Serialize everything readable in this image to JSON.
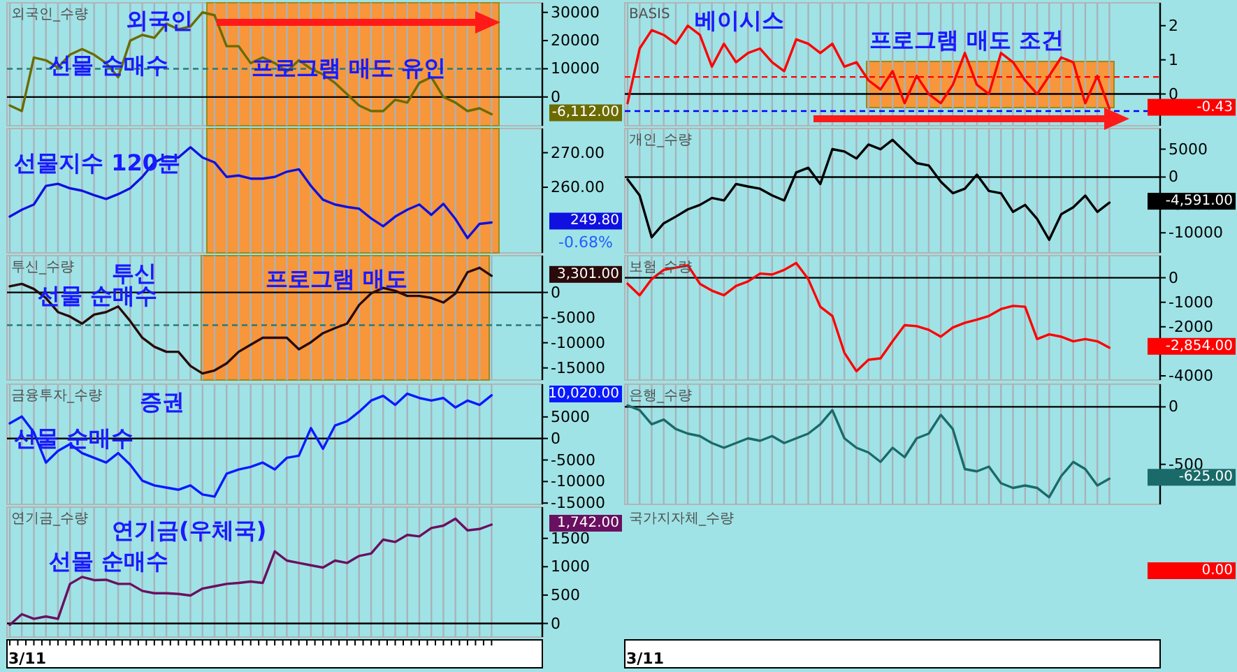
{
  "chart_data": [
    {
      "type": "line",
      "title": "외국인_수량",
      "color": "#6b6b00",
      "ylim": [
        -10200,
        33400
      ],
      "yticks": [
        0,
        10000,
        20000,
        30000
      ],
      "grid": "x",
      "tick_labels": "y",
      "categories": [
        null,
        null,
        null,
        null,
        null,
        null,
        null,
        null,
        null,
        null,
        null,
        null,
        null,
        null,
        null,
        null,
        null,
        null,
        null,
        null,
        null,
        null,
        null,
        null,
        null,
        null,
        null,
        null,
        null,
        null,
        null,
        null,
        null,
        null,
        null,
        null,
        null,
        null,
        null,
        null,
        null
      ],
      "values": [
        -3000,
        -5000,
        14000,
        13000,
        10500,
        15000,
        17000,
        15000,
        12000,
        7000,
        20000,
        22000,
        21000,
        26000,
        24000,
        25000,
        30000,
        29000,
        18000,
        18000,
        12000,
        14000,
        12000,
        9000,
        13000,
        10000,
        8000,
        5000,
        1000,
        -3000,
        -5000,
        -5000,
        -1000,
        -2000,
        5000,
        7000,
        0,
        -2000,
        -5000,
        -4000,
        -6112
      ],
      "ref_lines": [
        {
          "axis": "y",
          "value": 0,
          "color": "#000000",
          "line_style": "solid"
        },
        {
          "axis": "y",
          "value": 10000,
          "color": "#2a7a7a",
          "line_style": "dashed"
        }
      ],
      "annotations": [
        "외국인",
        "선물 순매수",
        "프로그램 매도 유인",
        "-6,112.00"
      ]
    },
    {
      "type": "line",
      "color": "#1010e0",
      "ylim": [
        241,
        277
      ],
      "yticks": [
        {
          "value": 260,
          "label": "260.00"
        },
        {
          "value": 270,
          "label": "270.00"
        }
      ],
      "grid": "x",
      "tick_labels": "y",
      "categories": [
        null,
        null,
        null,
        null,
        null,
        null,
        null,
        null,
        null,
        null,
        null,
        null,
        null,
        null,
        null,
        null,
        null,
        null,
        null,
        null,
        null,
        null,
        null,
        null,
        null,
        null,
        null,
        null,
        null,
        null,
        null,
        null,
        null,
        null,
        null,
        null,
        null,
        null,
        null,
        null,
        null
      ],
      "values": [
        251.5,
        253.5,
        255,
        260.4,
        261,
        259.7,
        259,
        257.7,
        256.6,
        258,
        259.7,
        263,
        267.2,
        268.9,
        268.6,
        271.6,
        268.6,
        267.2,
        263,
        263.4,
        262.5,
        262.5,
        263,
        264.5,
        265.2,
        260.4,
        256.4,
        255,
        254.3,
        253.8,
        251,
        248.7,
        251.5,
        253.5,
        255,
        252,
        255.2,
        250.8,
        245.3,
        249.4,
        249.8
      ],
      "annotations": [
        "선물지수 120분",
        "-0.68%",
        "249.80"
      ]
    },
    {
      "type": "line",
      "title": "투신_수량",
      "color": "#2a0a0a",
      "ylim": [
        -17400,
        7300
      ],
      "yticks": [
        -15000,
        -10000,
        -5000,
        0
      ],
      "grid": "x",
      "tick_labels": "y",
      "categories": [
        null,
        null,
        null,
        null,
        null,
        null,
        null,
        null,
        null,
        null,
        null,
        null,
        null,
        null,
        null,
        null,
        null,
        null,
        null,
        null,
        null,
        null,
        null,
        null,
        null,
        null,
        null,
        null,
        null,
        null,
        null,
        null,
        null,
        null,
        null,
        null,
        null,
        null,
        null,
        null,
        null
      ],
      "values": [
        1200,
        1700,
        700,
        -1100,
        -3900,
        -4800,
        -6200,
        -4400,
        -3900,
        -2800,
        -5700,
        -9000,
        -10800,
        -11800,
        -11800,
        -14600,
        -16100,
        -15500,
        -14100,
        -11800,
        -10400,
        -9000,
        -9000,
        -9000,
        -11300,
        -9900,
        -8100,
        -7100,
        -6200,
        -2500,
        -200,
        900,
        300,
        -700,
        -700,
        -1100,
        -2000,
        -200,
        4000,
        4900,
        3301
      ],
      "ref_lines": [
        {
          "axis": "y",
          "value": 0,
          "color": "#000000",
          "line_style": "solid"
        },
        {
          "axis": "y",
          "value": -6500,
          "color": "#2a7a7a",
          "line_style": "dashed"
        }
      ],
      "annotations": [
        "투신",
        "선물 순매수",
        "프로그램 매도",
        "3,301.00"
      ]
    },
    {
      "type": "line",
      "title": "금융투자_수량",
      "color": "#0a1aff",
      "ylim": [
        -15300,
        12600
      ],
      "yticks": [
        -15000,
        -10000,
        -5000,
        0,
        5000
      ],
      "grid": "x",
      "tick_labels": "y",
      "categories": [
        null,
        null,
        null,
        null,
        null,
        null,
        null,
        null,
        null,
        null,
        null,
        null,
        null,
        null,
        null,
        null,
        null,
        null,
        null,
        null,
        null,
        null,
        null,
        null,
        null,
        null,
        null,
        null,
        null,
        null,
        null,
        null,
        null,
        null,
        null,
        null,
        null,
        null,
        null,
        null,
        null
      ],
      "values": [
        3500,
        5100,
        1400,
        -5600,
        -2900,
        -1300,
        -3400,
        -4500,
        -5600,
        -3400,
        -6100,
        -9800,
        -10900,
        -11400,
        -11900,
        -10900,
        -13000,
        -13500,
        -8200,
        -7200,
        -6600,
        -5600,
        -7200,
        -4500,
        -4000,
        2400,
        -2400,
        3000,
        4000,
        6200,
        8800,
        9900,
        7800,
        10400,
        9400,
        8800,
        9400,
        7200,
        8800,
        7800,
        10020
      ],
      "ref_lines": [
        {
          "axis": "y",
          "value": 0,
          "color": "#000000",
          "line_style": "solid"
        }
      ],
      "annotations": [
        "증권",
        "선물 순매수",
        "10,020.00"
      ]
    },
    {
      "type": "line",
      "title": "연기금_수량",
      "color": "#6a1060",
      "ylim": [
        -240,
        2050
      ],
      "yticks": [
        0,
        500,
        1000,
        1500
      ],
      "grid": "x",
      "tick_labels": "y",
      "categories": [
        null,
        null,
        null,
        null,
        null,
        null,
        null,
        null,
        null,
        null,
        null,
        null,
        null,
        null,
        null,
        null,
        null,
        null,
        null,
        null,
        null,
        null,
        null,
        null,
        null,
        null,
        null,
        null,
        null,
        null,
        null,
        null,
        null,
        null,
        null,
        null,
        null,
        null,
        null,
        null,
        null
      ],
      "values": [
        -25,
        163,
        81,
        123,
        81,
        697,
        820,
        764,
        770,
        697,
        697,
        574,
        533,
        533,
        520,
        492,
        615,
        656,
        697,
        715,
        738,
        715,
        1271,
        1108,
        1066,
        1025,
        985,
        1108,
        1066,
        1190,
        1232,
        1478,
        1436,
        1560,
        1535,
        1683,
        1724,
        1847,
        1641,
        1665,
        1742
      ],
      "ref_lines": [
        {
          "axis": "y",
          "value": 0,
          "color": "#000000",
          "line_style": "solid"
        }
      ],
      "annotations": [
        "연기금(우체국)",
        "선물 순매수",
        "3/11",
        "1,742.00"
      ]
    },
    {
      "type": "line",
      "title": "BASIS",
      "color": "#ff0000",
      "ylim": [
        -0.93,
        2.67
      ],
      "yticks": [
        0,
        1,
        2
      ],
      "grid": "x",
      "tick_labels": "y",
      "categories": [
        null,
        null,
        null,
        null,
        null,
        null,
        null,
        null,
        null,
        null,
        null,
        null,
        null,
        null,
        null,
        null,
        null,
        null,
        null,
        null,
        null,
        null,
        null,
        null,
        null,
        null,
        null,
        null,
        null,
        null,
        null,
        null,
        null,
        null,
        null,
        null,
        null,
        null,
        null,
        null,
        null
      ],
      "values": [
        -0.27,
        1.33,
        1.87,
        1.73,
        1.47,
        2.0,
        1.73,
        0.8,
        1.47,
        0.93,
        1.2,
        1.33,
        0.93,
        0.67,
        1.6,
        1.47,
        1.2,
        1.47,
        0.8,
        0.93,
        0.4,
        0.13,
        0.67,
        -0.27,
        0.53,
        0,
        -0.27,
        0.27,
        1.2,
        0.27,
        0,
        1.2,
        0.93,
        0.4,
        0,
        0.53,
        1.07,
        0.93,
        -0.27,
        0.53,
        -0.43
      ],
      "ref_lines": [
        {
          "axis": "y",
          "value": 0,
          "color": "#000000",
          "line_style": "solid"
        },
        {
          "axis": "y",
          "value": 0.5,
          "color": "#ff0000",
          "line_style": "dashed"
        },
        {
          "axis": "y",
          "value": -0.5,
          "color": "#0000ff",
          "line_style": "dashed"
        }
      ],
      "annotations": [
        "베이시스",
        "프로그램 매도 조건",
        "-0.43"
      ]
    },
    {
      "type": "line",
      "title": "개인_수량",
      "color": "#000000",
      "ylim": [
        -13600,
        8700
      ],
      "yticks": [
        -10000,
        -5000,
        0,
        5000
      ],
      "grid": "x",
      "tick_labels": "y",
      "categories": [
        null,
        null,
        null,
        null,
        null,
        null,
        null,
        null,
        null,
        null,
        null,
        null,
        null,
        null,
        null,
        null,
        null,
        null,
        null,
        null,
        null,
        null,
        null,
        null,
        null,
        null,
        null,
        null,
        null,
        null,
        null,
        null,
        null,
        null,
        null,
        null,
        null,
        null,
        null,
        null,
        null
      ],
      "values": [
        -420,
        -3300,
        -10800,
        -8300,
        -7100,
        -5800,
        -5000,
        -3750,
        -4200,
        -1250,
        -1700,
        -2100,
        -3300,
        -4200,
        830,
        1670,
        -1250,
        5000,
        4580,
        3330,
        5830,
        5000,
        6670,
        4580,
        2500,
        2080,
        -830,
        -2900,
        -2100,
        420,
        -2500,
        -2900,
        -6250,
        -5000,
        -7500,
        -11250,
        -6670,
        -5420,
        -3330,
        -6250,
        -4591
      ],
      "ref_lines": [
        {
          "axis": "y",
          "value": 0,
          "color": "#000000",
          "line_style": "solid"
        }
      ],
      "annotations": [
        "-4,591.00"
      ]
    },
    {
      "type": "line",
      "title": "보험_수량",
      "color": "#ff0000",
      "ylim": [
        -4170,
        900
      ],
      "yticks": [
        -4000,
        -2000,
        -1000,
        0
      ],
      "grid": "x",
      "tick_labels": "y",
      "categories": [
        null,
        null,
        null,
        null,
        null,
        null,
        null,
        null,
        null,
        null,
        null,
        null,
        null,
        null,
        null,
        null,
        null,
        null,
        null,
        null,
        null,
        null,
        null,
        null,
        null,
        null,
        null,
        null,
        null,
        null,
        null,
        null,
        null,
        null,
        null,
        null,
        null,
        null,
        null,
        null,
        null
      ],
      "values": [
        -244,
        -714,
        -56,
        319,
        413,
        507,
        -244,
        -526,
        -714,
        -338,
        -150,
        169,
        131,
        319,
        601,
        -56,
        -1183,
        -1559,
        -3061,
        -3812,
        -3343,
        -3287,
        -2592,
        -1934,
        -1972,
        -2122,
        -2404,
        -2028,
        -1840,
        -1709,
        -1559,
        -1277,
        -1146,
        -1183,
        -2498,
        -2310,
        -2404,
        -2592,
        -2498,
        -2592,
        -2854
      ],
      "ref_lines": [
        {
          "axis": "y",
          "value": 0,
          "color": "#000000",
          "line_style": "solid"
        }
      ],
      "annotations": [
        "-2,854.00"
      ]
    },
    {
      "type": "line",
      "title": "은행_수량",
      "color": "#1a6a6a",
      "ylim": [
        -848,
        197
      ],
      "yticks": [
        -500,
        0
      ],
      "grid": "x",
      "tick_labels": "y",
      "categories": [
        null,
        null,
        null,
        null,
        null,
        null,
        null,
        null,
        null,
        null,
        null,
        null,
        null,
        null,
        null,
        null,
        null,
        null,
        null,
        null,
        null,
        null,
        null,
        null,
        null,
        null,
        null,
        null,
        null,
        null,
        null,
        null,
        null,
        null,
        null,
        null,
        null,
        null,
        null,
        null,
        null
      ],
      "values": [
        12,
        -29,
        -152,
        -111,
        -193,
        -233,
        -254,
        -315,
        -356,
        -315,
        -274,
        -295,
        -254,
        -315,
        -274,
        -233,
        -152,
        -29,
        -274,
        -356,
        -397,
        -479,
        -356,
        -438,
        -274,
        -233,
        -70,
        -193,
        -541,
        -561,
        -520,
        -664,
        -705,
        -684,
        -705,
        -786,
        -602,
        -479,
        -541,
        -684,
        -625
      ],
      "ref_lines": [
        {
          "axis": "y",
          "value": 0,
          "color": "#000000",
          "line_style": "solid"
        }
      ],
      "annotations": [
        "-625.00"
      ]
    },
    {
      "type": "other",
      "title": "국가지자체_수량",
      "color": "#ff0000",
      "annotations": [
        "0.00",
        "3/11"
      ]
    }
  ]
}
